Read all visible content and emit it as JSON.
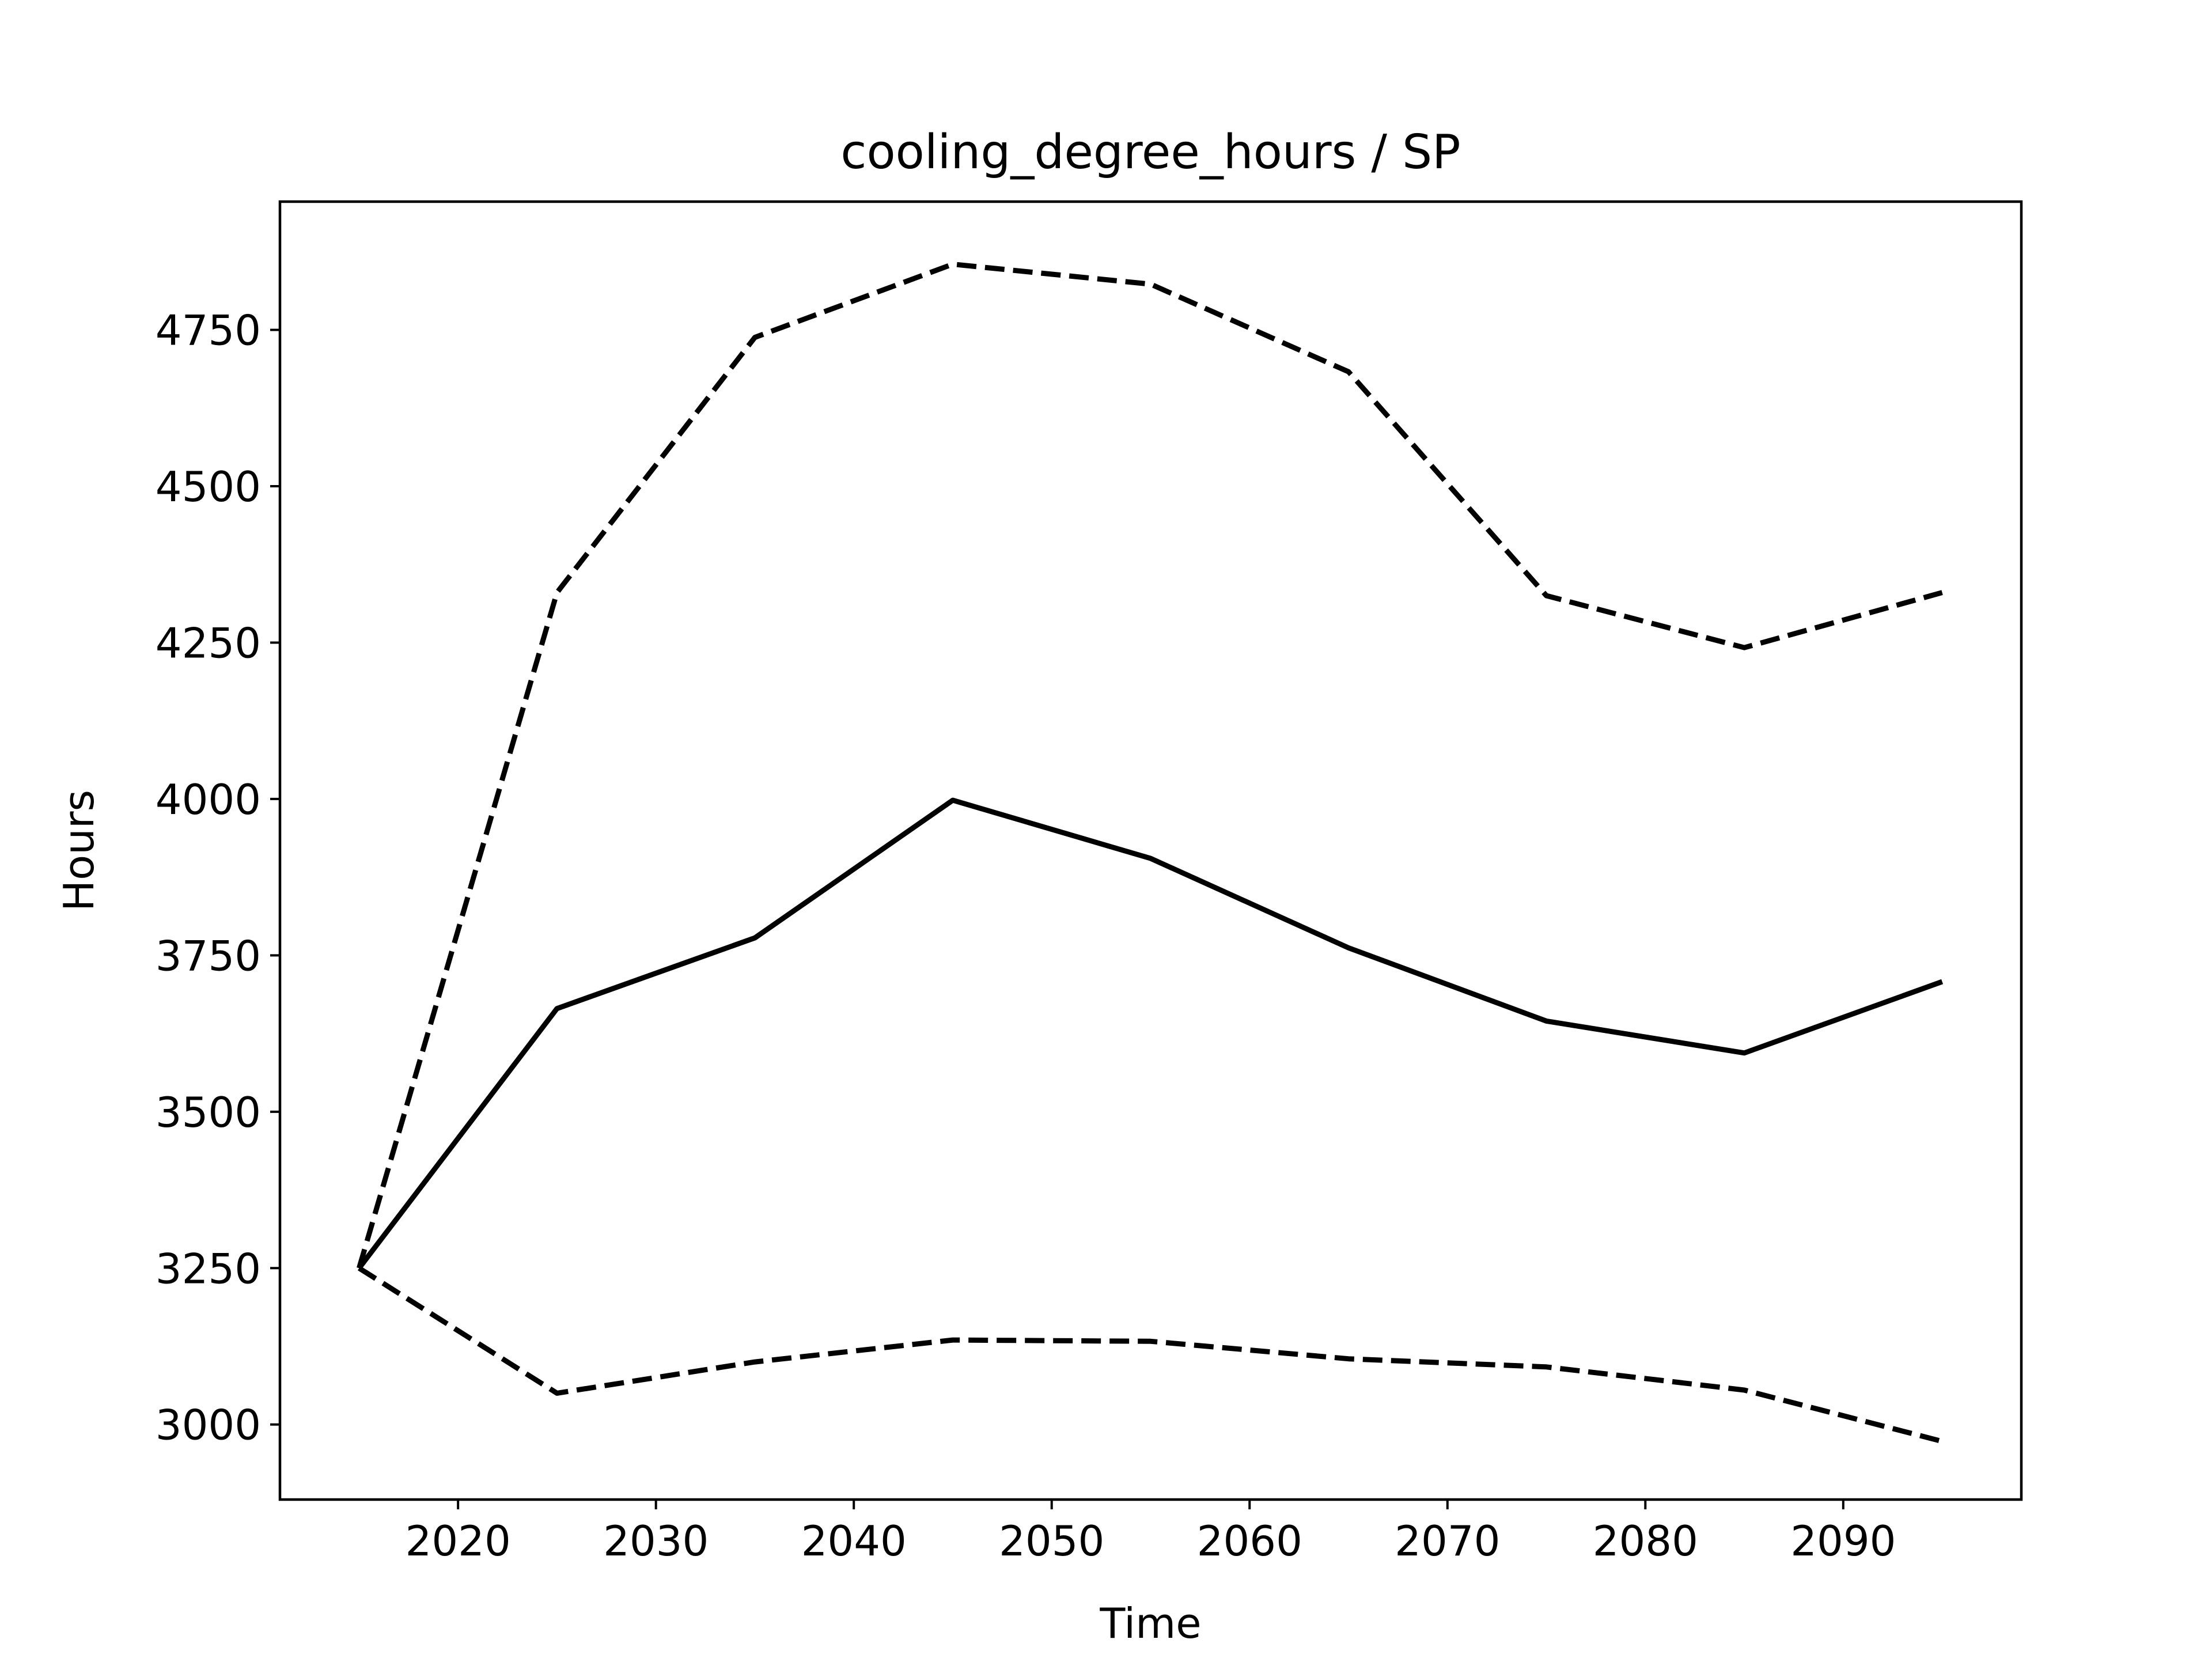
{
  "chart_data": {
    "type": "line",
    "title": "cooling_degree_hours / SP",
    "xlabel": "Time",
    "ylabel": "Hours",
    "xlim": [
      2011,
      2099
    ],
    "ylim": [
      2880,
      4955
    ],
    "x_ticks": [
      2020,
      2030,
      2040,
      2050,
      2060,
      2070,
      2080,
      2090
    ],
    "y_ticks": [
      3000,
      3250,
      3500,
      3750,
      4000,
      4250,
      4500,
      4750
    ],
    "grid": false,
    "x": [
      2015,
      2025,
      2035,
      2045,
      2055,
      2065,
      2075,
      2085,
      2095
    ],
    "series": [
      {
        "style": "dashed",
        "color": "#000000",
        "values": [
          3250,
          4330,
          4738,
          4855,
          4823,
          4683,
          4325,
          4242,
          4330
        ]
      },
      {
        "style": "solid",
        "color": "#000000",
        "values": [
          3250,
          3665,
          3778,
          3998,
          3905,
          3762,
          3645,
          3594,
          3708
        ]
      },
      {
        "style": "dashed",
        "color": "#000000",
        "values": [
          3250,
          3050,
          3100,
          3135,
          3133,
          3105,
          3092,
          3055,
          2973
        ]
      }
    ]
  }
}
